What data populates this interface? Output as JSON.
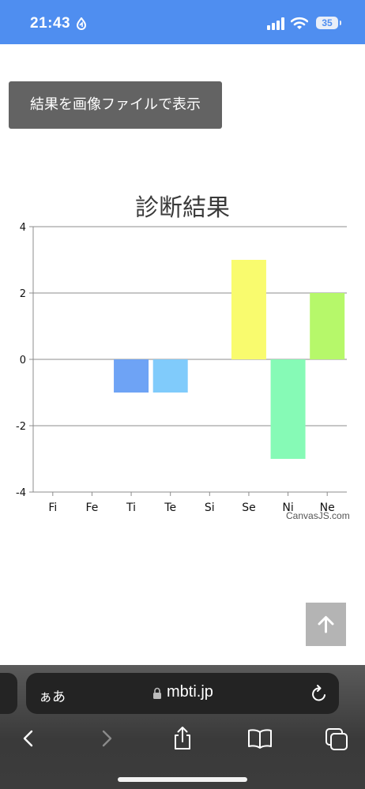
{
  "status": {
    "time": "21:43",
    "battery": "35"
  },
  "save_button": "結果を画像ファイルで表示",
  "chart_data": {
    "type": "bar",
    "title": "診断結果",
    "categories": [
      "Fi",
      "Fe",
      "Ti",
      "Te",
      "Si",
      "Se",
      "Ni",
      "Ne"
    ],
    "values": [
      0,
      0,
      -1,
      -1,
      0,
      3,
      -3,
      2
    ],
    "colors": [
      "#6ea3f5",
      "#6ea3f5",
      "#6ea3f5",
      "#80cbfb",
      "#80cbfb",
      "#f9fb6e",
      "#86fab6",
      "#b6f86a"
    ],
    "ylim": [
      -4,
      4
    ],
    "yticks": [
      "4",
      "2",
      "0",
      "-2",
      "-4"
    ],
    "grid": true,
    "credit": "CanvasJS.com"
  },
  "browser": {
    "text_size": "ぁあ",
    "url": "mbti.jp"
  },
  "icons": {
    "scroll_top": "arrow-up-icon",
    "back": "back-chevron-icon",
    "forward": "forward-chevron-icon",
    "share": "share-icon",
    "bookmarks": "book-icon",
    "tabs": "tabs-icon",
    "reload": "reload-icon",
    "lock": "lock-icon"
  }
}
